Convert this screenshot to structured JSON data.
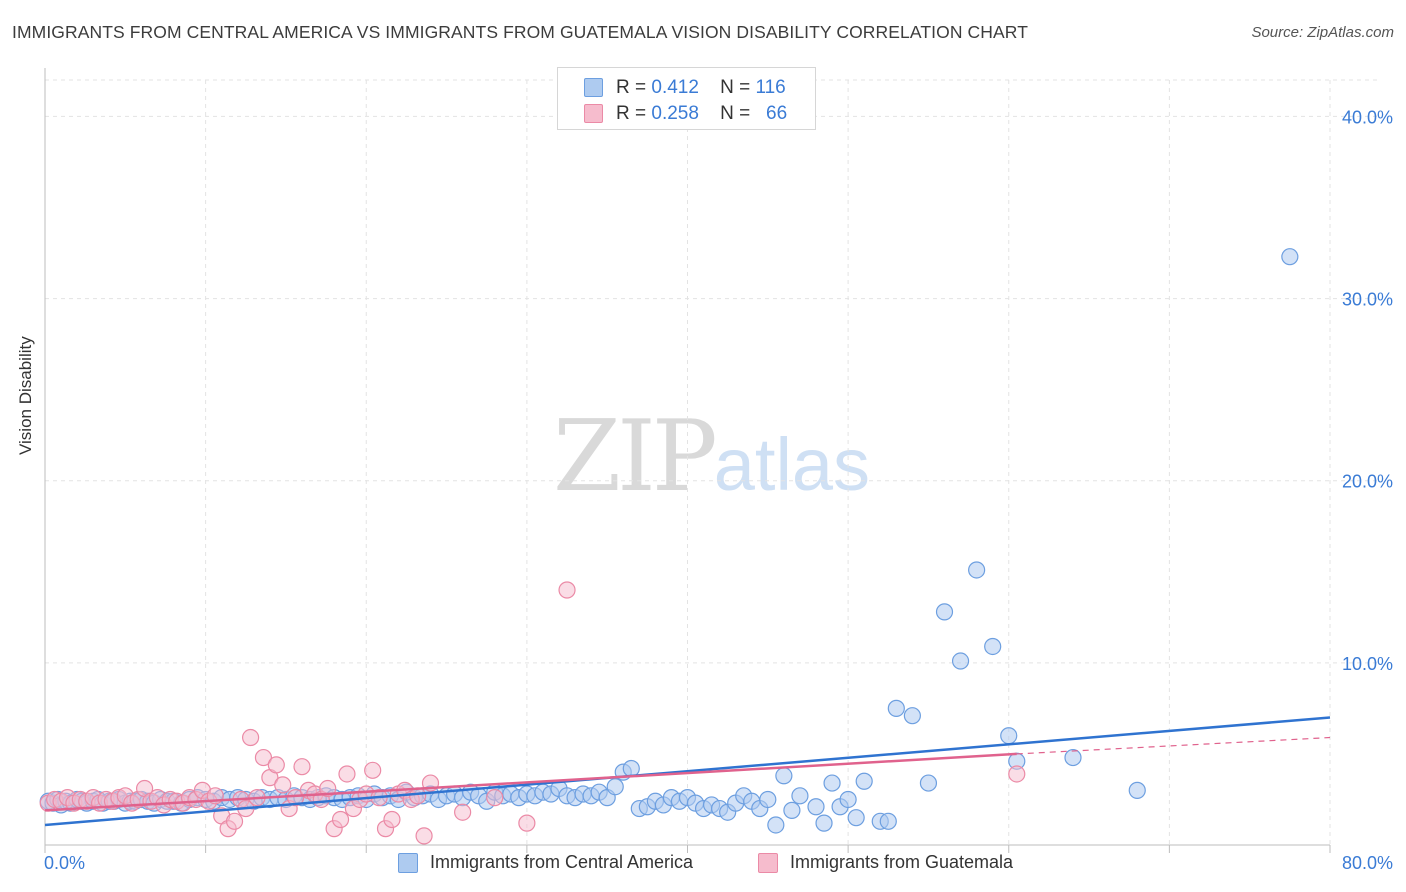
{
  "title": "IMMIGRANTS FROM CENTRAL AMERICA VS IMMIGRANTS FROM GUATEMALA VISION DISABILITY CORRELATION CHART",
  "source": "Source: ZipAtlas.com",
  "watermark": {
    "zip": "ZIP",
    "atlas": "atlas"
  },
  "legend": {
    "rows": [
      {
        "r_label": "R =",
        "r_value": "0.412",
        "n_label": "N =",
        "n_value": "116"
      },
      {
        "r_label": "R =",
        "r_value": "0.258",
        "n_label": "N =",
        "n_value": "66"
      }
    ]
  },
  "bottom_legend": {
    "series1": "Immigrants from Central America",
    "series2": "Immigrants from Guatemala"
  },
  "colors": {
    "blue_fill": "#aecbf0",
    "blue_stroke": "#6d9fe0",
    "blue_line": "#2f73d0",
    "pink_fill": "#f6bccd",
    "pink_stroke": "#eb8aa6",
    "pink_line": "#e0628d",
    "tick_color": "#3a7bd5",
    "grid": "#e3e3e3"
  },
  "chart_data": {
    "type": "scatter",
    "xlabel": "",
    "ylabel": "Vision Disability",
    "xlim": [
      0,
      80
    ],
    "ylim": [
      0,
      42
    ],
    "x_tick_labels": [
      "0.0%",
      "80.0%"
    ],
    "y_ticks": [
      10,
      20,
      30,
      40
    ],
    "y_tick_labels": [
      "10.0%",
      "20.0%",
      "30.0%",
      "40.0%"
    ],
    "grid": true,
    "legend_position": "top-center",
    "series": [
      {
        "name": "Immigrants from Central America",
        "color": "#6d9fe0",
        "trend": {
          "x": [
            0,
            80
          ],
          "y": [
            1.1,
            7.0
          ]
        },
        "points": [
          [
            0.2,
            2.4
          ],
          [
            0.5,
            2.3
          ],
          [
            0.8,
            2.5
          ],
          [
            1.0,
            2.2
          ],
          [
            1.3,
            2.4
          ],
          [
            1.6,
            2.3
          ],
          [
            2.0,
            2.5
          ],
          [
            2.3,
            2.4
          ],
          [
            2.6,
            2.3
          ],
          [
            3.0,
            2.4
          ],
          [
            3.3,
            2.5
          ],
          [
            3.6,
            2.3
          ],
          [
            4.0,
            2.4
          ],
          [
            4.3,
            2.4
          ],
          [
            4.6,
            2.5
          ],
          [
            5.0,
            2.3
          ],
          [
            5.3,
            2.4
          ],
          [
            5.6,
            2.4
          ],
          [
            6.0,
            2.5
          ],
          [
            6.4,
            2.4
          ],
          [
            6.8,
            2.3
          ],
          [
            7.2,
            2.5
          ],
          [
            7.6,
            2.4
          ],
          [
            8.0,
            2.4
          ],
          [
            8.5,
            2.3
          ],
          [
            9.0,
            2.5
          ],
          [
            9.5,
            2.6
          ],
          [
            10.0,
            2.5
          ],
          [
            10.5,
            2.4
          ],
          [
            11.0,
            2.6
          ],
          [
            11.5,
            2.5
          ],
          [
            12.0,
            2.6
          ],
          [
            12.5,
            2.5
          ],
          [
            13.0,
            2.4
          ],
          [
            13.5,
            2.6
          ],
          [
            14.0,
            2.5
          ],
          [
            14.5,
            2.6
          ],
          [
            15.0,
            2.5
          ],
          [
            15.5,
            2.7
          ],
          [
            16.0,
            2.6
          ],
          [
            16.5,
            2.5
          ],
          [
            17.0,
            2.6
          ],
          [
            17.5,
            2.7
          ],
          [
            18.0,
            2.6
          ],
          [
            18.5,
            2.5
          ],
          [
            19.0,
            2.6
          ],
          [
            19.5,
            2.7
          ],
          [
            20.0,
            2.5
          ],
          [
            20.5,
            2.8
          ],
          [
            21.0,
            2.6
          ],
          [
            21.5,
            2.7
          ],
          [
            22.0,
            2.5
          ],
          [
            22.5,
            2.9
          ],
          [
            23.0,
            2.6
          ],
          [
            23.5,
            2.7
          ],
          [
            24.0,
            2.8
          ],
          [
            24.5,
            2.5
          ],
          [
            25.0,
            2.7
          ],
          [
            25.5,
            2.8
          ],
          [
            26.0,
            2.6
          ],
          [
            26.5,
            2.9
          ],
          [
            27.0,
            2.7
          ],
          [
            27.5,
            2.4
          ],
          [
            28.0,
            2.9
          ],
          [
            28.5,
            2.7
          ],
          [
            29.0,
            2.8
          ],
          [
            29.5,
            2.6
          ],
          [
            30.0,
            2.8
          ],
          [
            30.5,
            2.7
          ],
          [
            31.0,
            2.9
          ],
          [
            31.5,
            2.8
          ],
          [
            32.0,
            3.1
          ],
          [
            32.5,
            2.7
          ],
          [
            33.0,
            2.6
          ],
          [
            33.5,
            2.8
          ],
          [
            34.0,
            2.7
          ],
          [
            34.5,
            2.9
          ],
          [
            35.0,
            2.6
          ],
          [
            35.5,
            3.2
          ],
          [
            36.0,
            4.0
          ],
          [
            36.5,
            4.2
          ],
          [
            37.0,
            2.0
          ],
          [
            37.5,
            2.1
          ],
          [
            38.0,
            2.4
          ],
          [
            38.5,
            2.2
          ],
          [
            39.0,
            2.6
          ],
          [
            39.5,
            2.4
          ],
          [
            40.0,
            2.6
          ],
          [
            40.5,
            2.3
          ],
          [
            41.0,
            2.0
          ],
          [
            41.5,
            2.2
          ],
          [
            42.0,
            2.0
          ],
          [
            42.5,
            1.8
          ],
          [
            43.0,
            2.3
          ],
          [
            43.5,
            2.7
          ],
          [
            44.0,
            2.4
          ],
          [
            44.5,
            2.0
          ],
          [
            45.0,
            2.5
          ],
          [
            45.5,
            1.1
          ],
          [
            46.0,
            3.8
          ],
          [
            46.5,
            1.9
          ],
          [
            47.0,
            2.7
          ],
          [
            48.0,
            2.1
          ],
          [
            48.5,
            1.2
          ],
          [
            49.0,
            3.4
          ],
          [
            49.5,
            2.1
          ],
          [
            50.0,
            2.5
          ],
          [
            50.5,
            1.5
          ],
          [
            51.0,
            3.5
          ],
          [
            52.0,
            1.3
          ],
          [
            52.5,
            1.3
          ],
          [
            53.0,
            7.5
          ],
          [
            54.0,
            7.1
          ],
          [
            55.0,
            3.4
          ],
          [
            56.0,
            12.8
          ],
          [
            57.0,
            10.1
          ],
          [
            58.0,
            15.1
          ],
          [
            59.0,
            10.9
          ],
          [
            60.0,
            6.0
          ],
          [
            60.5,
            4.6
          ],
          [
            64.0,
            4.8
          ],
          [
            68.0,
            3.0
          ],
          [
            77.5,
            32.3
          ]
        ]
      },
      {
        "name": "Immigrants from Guatemala",
        "color": "#eb8aa6",
        "trend": {
          "x": [
            0,
            60.5
          ],
          "y": [
            1.9,
            5.0
          ]
        },
        "trend_dashed": {
          "x": [
            60.5,
            80
          ],
          "y": [
            5.0,
            5.9
          ]
        },
        "points": [
          [
            0.2,
            2.3
          ],
          [
            0.6,
            2.5
          ],
          [
            1.0,
            2.4
          ],
          [
            1.4,
            2.6
          ],
          [
            1.8,
            2.3
          ],
          [
            2.2,
            2.5
          ],
          [
            2.6,
            2.4
          ],
          [
            3.0,
            2.6
          ],
          [
            3.4,
            2.3
          ],
          [
            3.8,
            2.5
          ],
          [
            4.2,
            2.4
          ],
          [
            4.6,
            2.6
          ],
          [
            5.0,
            2.7
          ],
          [
            5.4,
            2.3
          ],
          [
            5.8,
            2.5
          ],
          [
            6.2,
            3.1
          ],
          [
            6.6,
            2.4
          ],
          [
            7.0,
            2.6
          ],
          [
            7.4,
            2.2
          ],
          [
            7.8,
            2.5
          ],
          [
            8.2,
            2.4
          ],
          [
            8.6,
            2.3
          ],
          [
            9.0,
            2.6
          ],
          [
            9.4,
            2.5
          ],
          [
            9.8,
            3.0
          ],
          [
            10.2,
            2.4
          ],
          [
            10.6,
            2.7
          ],
          [
            11.0,
            1.6
          ],
          [
            11.4,
            0.9
          ],
          [
            11.8,
            1.3
          ],
          [
            12.2,
            2.5
          ],
          [
            12.5,
            2.0
          ],
          [
            12.8,
            5.9
          ],
          [
            13.2,
            2.6
          ],
          [
            13.6,
            4.8
          ],
          [
            14.0,
            3.7
          ],
          [
            14.4,
            4.4
          ],
          [
            14.8,
            3.3
          ],
          [
            15.2,
            2.0
          ],
          [
            15.6,
            2.6
          ],
          [
            16.0,
            4.3
          ],
          [
            16.4,
            3.0
          ],
          [
            16.8,
            2.8
          ],
          [
            17.2,
            2.5
          ],
          [
            17.6,
            3.1
          ],
          [
            18.0,
            0.9
          ],
          [
            18.4,
            1.4
          ],
          [
            18.8,
            3.9
          ],
          [
            19.2,
            2.0
          ],
          [
            19.6,
            2.5
          ],
          [
            20.0,
            2.8
          ],
          [
            20.4,
            4.1
          ],
          [
            20.8,
            2.6
          ],
          [
            21.2,
            0.9
          ],
          [
            21.6,
            1.4
          ],
          [
            22.0,
            2.8
          ],
          [
            22.4,
            3.0
          ],
          [
            22.8,
            2.5
          ],
          [
            23.2,
            2.7
          ],
          [
            23.6,
            0.5
          ],
          [
            24.0,
            3.4
          ],
          [
            26.0,
            1.8
          ],
          [
            28.0,
            2.6
          ],
          [
            32.5,
            14.0
          ],
          [
            30.0,
            1.2
          ],
          [
            60.5,
            3.9
          ]
        ]
      }
    ]
  }
}
